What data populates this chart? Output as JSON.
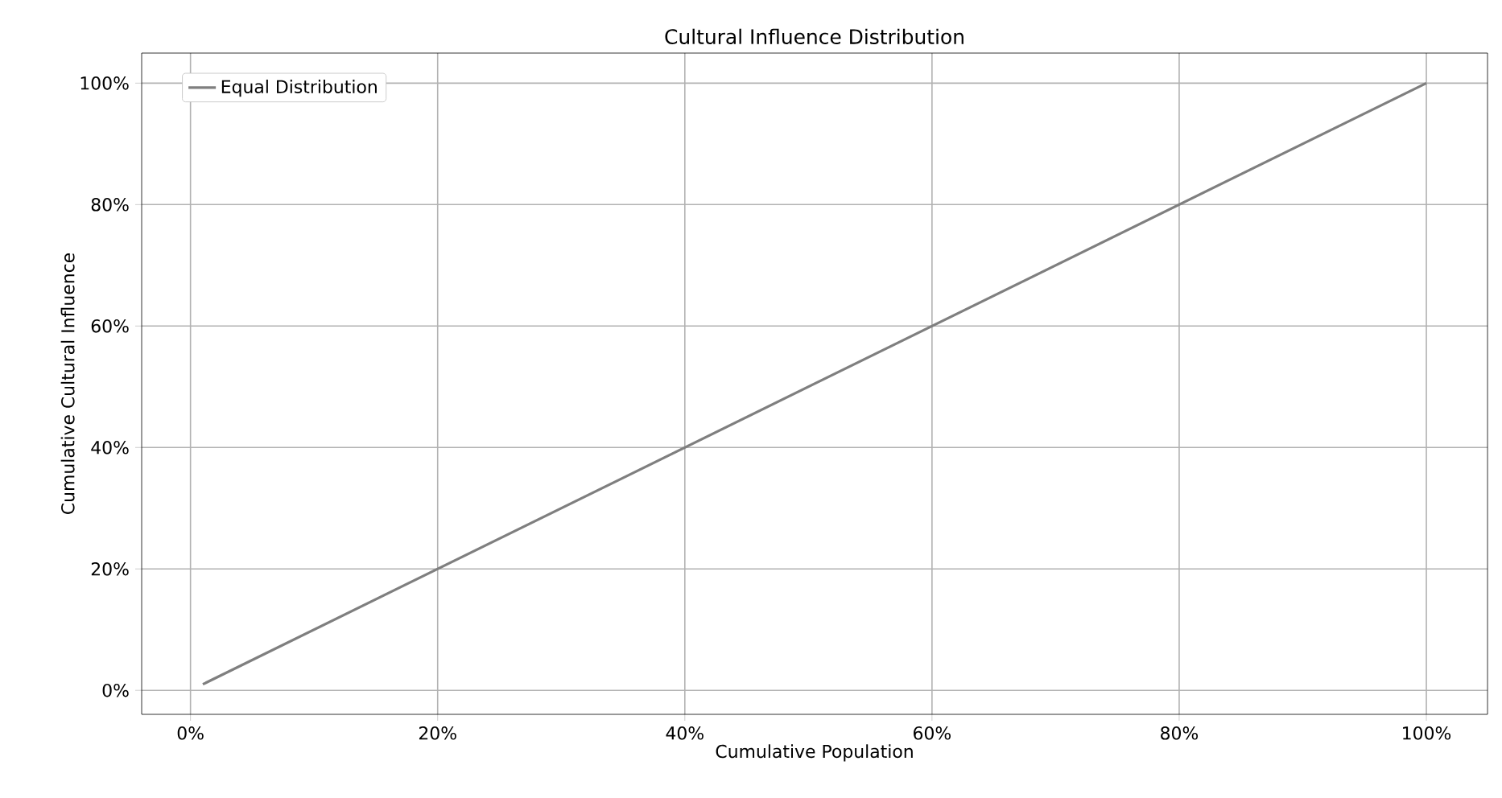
{
  "chart_data": {
    "type": "line",
    "title": "Cultural Influence Distribution",
    "xlabel": "Cumulative Population",
    "ylabel": "Cumulative Cultural Influence",
    "x": [
      1,
      100
    ],
    "series": [
      {
        "name": "Equal Distribution",
        "color": "#7f7f7f",
        "values": [
          1,
          100
        ]
      }
    ],
    "xlim": [
      -3.95,
      104.95
    ],
    "ylim": [
      -3.95,
      104.95
    ],
    "xticks": [
      {
        "value": 0,
        "label": "0%"
      },
      {
        "value": 20,
        "label": "20%"
      },
      {
        "value": 40,
        "label": "40%"
      },
      {
        "value": 60,
        "label": "60%"
      },
      {
        "value": 80,
        "label": "80%"
      },
      {
        "value": 100,
        "label": "100%"
      }
    ],
    "yticks": [
      {
        "value": 0,
        "label": "0%"
      },
      {
        "value": 20,
        "label": "20%"
      },
      {
        "value": 40,
        "label": "40%"
      },
      {
        "value": 60,
        "label": "60%"
      },
      {
        "value": 80,
        "label": "80%"
      },
      {
        "value": 100,
        "label": "100%"
      }
    ],
    "grid": true,
    "legend": "top left"
  }
}
